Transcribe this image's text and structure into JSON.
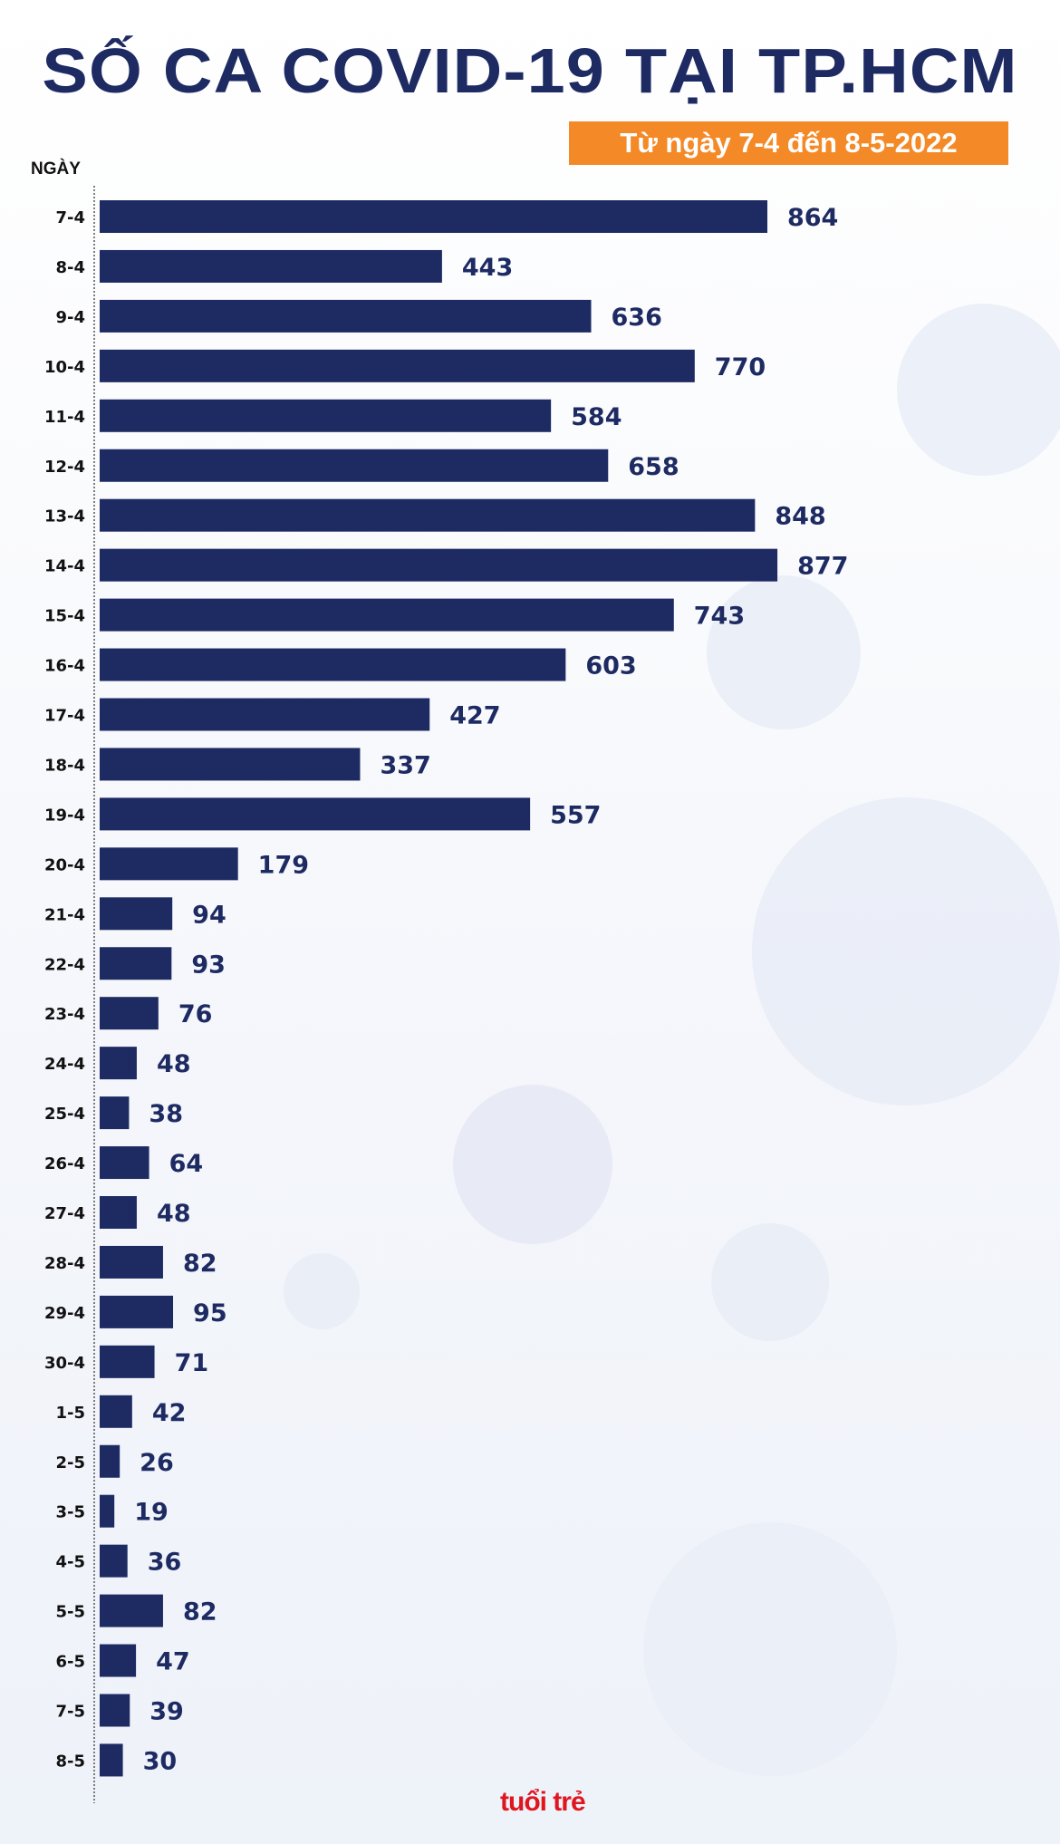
{
  "title": "SỐ CA COVID-19 TẠI TP.HCM",
  "subtitle": "Từ ngày 7-4 đến 8-5-2022",
  "logo": "tuổi trẻ online",
  "colors": {
    "bar": "#1e2b63",
    "title": "#1e2b63",
    "subtitle_bg": "#f48a27",
    "label": "#111111"
  },
  "chart_data": {
    "type": "bar",
    "orientation": "horizontal",
    "title": "SỐ CA COVID-19 TẠI TP.HCM",
    "subtitle": "Từ ngày 7-4 đến 8-5-2022",
    "ylabel": "NGÀY",
    "xlabel": "",
    "grid": false,
    "data_labels": true,
    "categories": [
      "7-4",
      "8-4",
      "9-4",
      "10-4",
      "11-4",
      "12-4",
      "13-4",
      "14-4",
      "15-4",
      "16-4",
      "17-4",
      "18-4",
      "19-4",
      "20-4",
      "21-4",
      "22-4",
      "23-4",
      "24-4",
      "25-4",
      "26-4",
      "27-4",
      "28-4",
      "29-4",
      "30-4",
      "1-5",
      "2-5",
      "3-5",
      "4-5",
      "5-5",
      "6-5",
      "7-5",
      "8-5"
    ],
    "values": [
      864,
      443,
      636,
      770,
      584,
      658,
      848,
      877,
      743,
      603,
      427,
      337,
      557,
      179,
      94,
      93,
      76,
      48,
      38,
      64,
      48,
      82,
      95,
      71,
      42,
      26,
      19,
      36,
      82,
      47,
      39,
      30
    ]
  }
}
